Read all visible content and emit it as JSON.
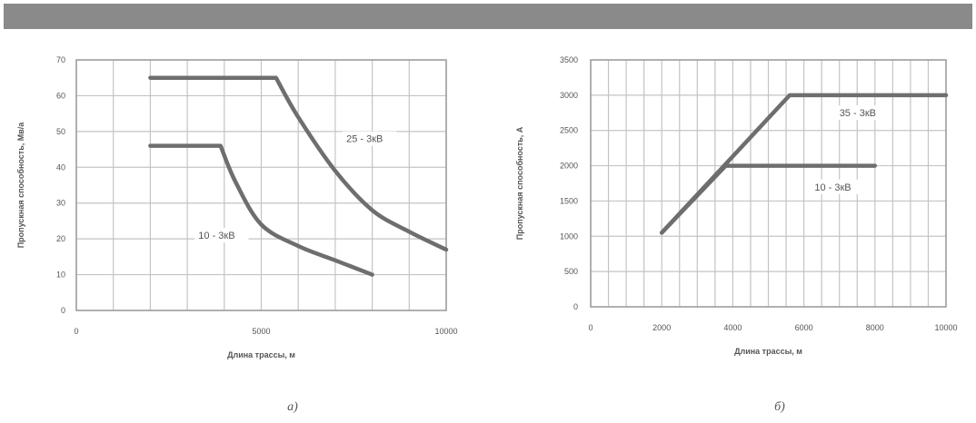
{
  "chart_data": [
    {
      "type": "line",
      "caption": "а)",
      "xlabel": "Длина трассы, м",
      "ylabel": "Пропускная способность, Мв/а",
      "xlim": [
        0,
        10000
      ],
      "ylim": [
        0,
        70
      ],
      "x_ticks": [
        {
          "value": 0,
          "label": "0"
        },
        {
          "value": 5000,
          "label": "5000"
        },
        {
          "value": 10000,
          "label": "10000"
        }
      ],
      "y_ticks": [
        {
          "value": 0,
          "label": "0"
        },
        {
          "value": 10,
          "label": "10"
        },
        {
          "value": 20,
          "label": "20"
        },
        {
          "value": 30,
          "label": "30"
        },
        {
          "value": 40,
          "label": "40"
        },
        {
          "value": 50,
          "label": "50"
        },
        {
          "value": 60,
          "label": "60"
        },
        {
          "value": 70,
          "label": "70"
        }
      ],
      "grid": true,
      "series": [
        {
          "name": "25 - 3кВ",
          "x": [
            2000,
            5400,
            6000,
            7000,
            8000,
            9000,
            10000
          ],
          "y": [
            65,
            65,
            54,
            39,
            28,
            22,
            17
          ]
        },
        {
          "name": "10 - 3кВ",
          "x": [
            2000,
            3900,
            4300,
            5000,
            6000,
            7000,
            8000
          ],
          "y": [
            46,
            46,
            36,
            24,
            18,
            14,
            10
          ]
        }
      ],
      "annotations": [
        {
          "text": "25 - 3кВ",
          "x": 7300,
          "y": 47
        },
        {
          "text": "10 - 3кВ",
          "x": 3300,
          "y": 20
        }
      ]
    },
    {
      "type": "line",
      "caption": "б)",
      "xlabel": "Длина трассы, м",
      "ylabel": "Пропускная способность, А",
      "xlim": [
        0,
        10000
      ],
      "ylim": [
        0,
        3500
      ],
      "x_ticks": [
        {
          "value": 0,
          "label": "0"
        },
        {
          "value": 2000,
          "label": "2000"
        },
        {
          "value": 4000,
          "label": "4000"
        },
        {
          "value": 6000,
          "label": "6000"
        },
        {
          "value": 8000,
          "label": "8000"
        },
        {
          "value": 10000,
          "label": "10000"
        }
      ],
      "y_ticks": [
        {
          "value": 0,
          "label": "0"
        },
        {
          "value": 500,
          "label": "500"
        },
        {
          "value": 1000,
          "label": "1000"
        },
        {
          "value": 1500,
          "label": "1500"
        },
        {
          "value": 2000,
          "label": "2000"
        },
        {
          "value": 2500,
          "label": "2500"
        },
        {
          "value": 3000,
          "label": "3000"
        },
        {
          "value": 3500,
          "label": "3500"
        }
      ],
      "grid": true,
      "series": [
        {
          "name": "35 - 3кВ",
          "x": [
            2000,
            5600,
            10000
          ],
          "y": [
            1050,
            3000,
            3000
          ]
        },
        {
          "name": "10 - 3кВ",
          "x": [
            2000,
            3800,
            8000
          ],
          "y": [
            1050,
            2000,
            2000
          ]
        }
      ],
      "annotations": [
        {
          "text": "35 - 3кВ",
          "x": 7000,
          "y": 2700
        },
        {
          "text": "10 - 3кВ",
          "x": 6300,
          "y": 1650
        }
      ]
    }
  ]
}
